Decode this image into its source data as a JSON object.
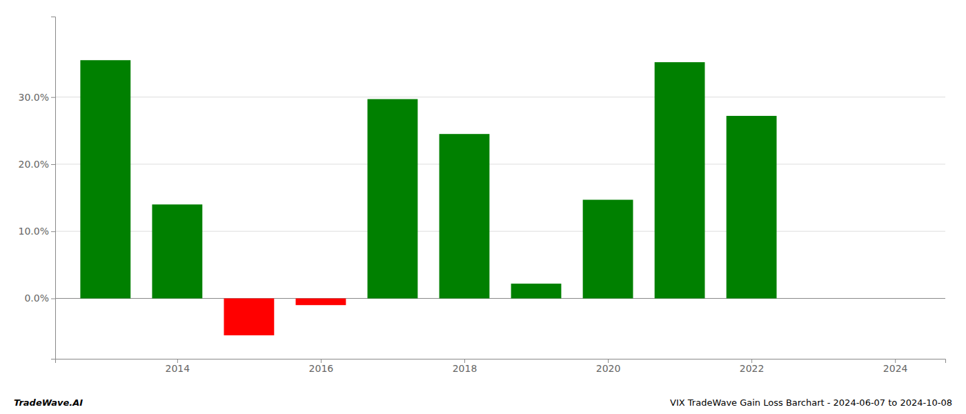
{
  "chart_data": {
    "type": "bar",
    "x": [
      2013,
      2014,
      2015,
      2016,
      2017,
      2018,
      2019,
      2020,
      2021,
      2022,
      2023
    ],
    "values": [
      0.355,
      0.14,
      -0.055,
      -0.01,
      0.297,
      0.245,
      0.022,
      0.147,
      0.352,
      0.272,
      null
    ],
    "colors": [
      "#008000",
      "#008000",
      "#ff0000",
      "#ff0000",
      "#008000",
      "#008000",
      "#008000",
      "#008000",
      "#008000",
      "#008000",
      null
    ],
    "xlim": [
      2012.3,
      2024.7
    ],
    "ylim": [
      -0.09,
      0.42
    ],
    "xticks": [
      2014,
      2016,
      2018,
      2020,
      2022,
      2024
    ],
    "yticks": [
      {
        "value": 0.0,
        "label": "0.0%"
      },
      {
        "value": 0.1,
        "label": "10.0%"
      },
      {
        "value": 0.2,
        "label": "20.0%"
      },
      {
        "value": 0.3,
        "label": "30.0%"
      }
    ],
    "grid": true,
    "annotations": [
      "TradeWave.AI",
      "VIX TradeWave Gain Loss Barchart - 2024-06-07 to 2024-10-08"
    ]
  }
}
